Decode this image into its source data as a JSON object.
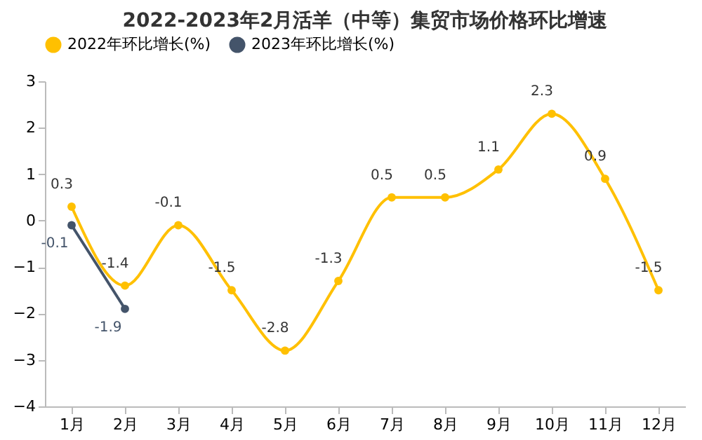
{
  "chart_data": {
    "type": "line",
    "title": "2022-2023年2月活羊（中等）集贸市场价格环比增速",
    "categories": [
      "1月",
      "2月",
      "3月",
      "4月",
      "5月",
      "6月",
      "7月",
      "8月",
      "9月",
      "10月",
      "11月",
      "12月"
    ],
    "series": [
      {
        "name": "2022年环比增长(%)",
        "color": "#ffc000",
        "values": [
          0.3,
          -1.4,
          -0.1,
          -1.5,
          -2.8,
          -1.3,
          0.5,
          0.5,
          1.1,
          2.3,
          0.9,
          -1.5
        ]
      },
      {
        "name": "2023年环比增长(%)",
        "color": "#44546a",
        "values": [
          -0.1,
          -1.9,
          null,
          null,
          null,
          null,
          null,
          null,
          null,
          null,
          null,
          null
        ]
      }
    ],
    "ylim": [
      -4,
      3
    ],
    "yticks": [
      -4,
      -3,
      -2,
      -1,
      0,
      1,
      2,
      3
    ],
    "grid": false,
    "legend": "top",
    "marker": "circle",
    "line_style": "solid",
    "data_labels": true
  }
}
